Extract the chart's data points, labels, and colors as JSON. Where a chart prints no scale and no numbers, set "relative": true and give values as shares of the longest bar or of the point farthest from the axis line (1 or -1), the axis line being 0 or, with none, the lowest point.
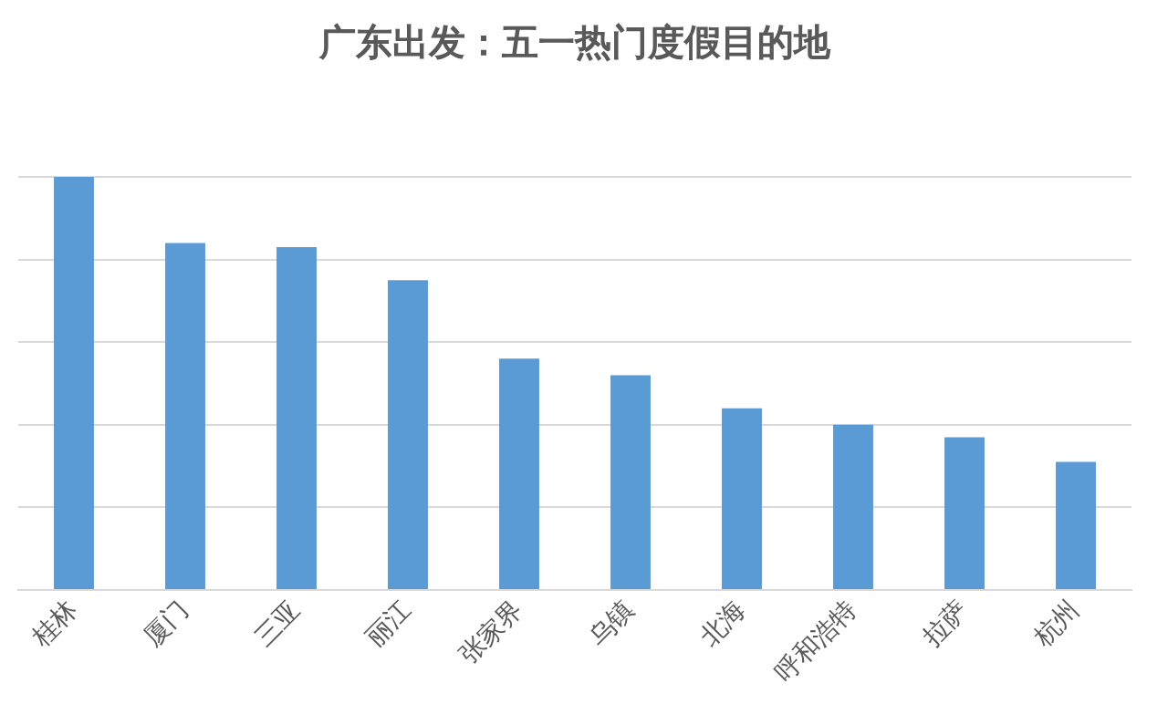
{
  "chart_data": {
    "type": "bar",
    "title": "广东出发：五一热门度假目的地",
    "categories": [
      "桂林",
      "厦门",
      "三亚",
      "丽江",
      "张家界",
      "乌镇",
      "北海",
      "呼和浩特",
      "拉萨",
      "杭州"
    ],
    "values": [
      1,
      0.84,
      0.83,
      0.75,
      0.56,
      0.52,
      0.44,
      0.4,
      0.37,
      0.31
    ],
    "color": "#5b9bd5",
    "relative": true,
    "grid": "y",
    "legend": false
  }
}
